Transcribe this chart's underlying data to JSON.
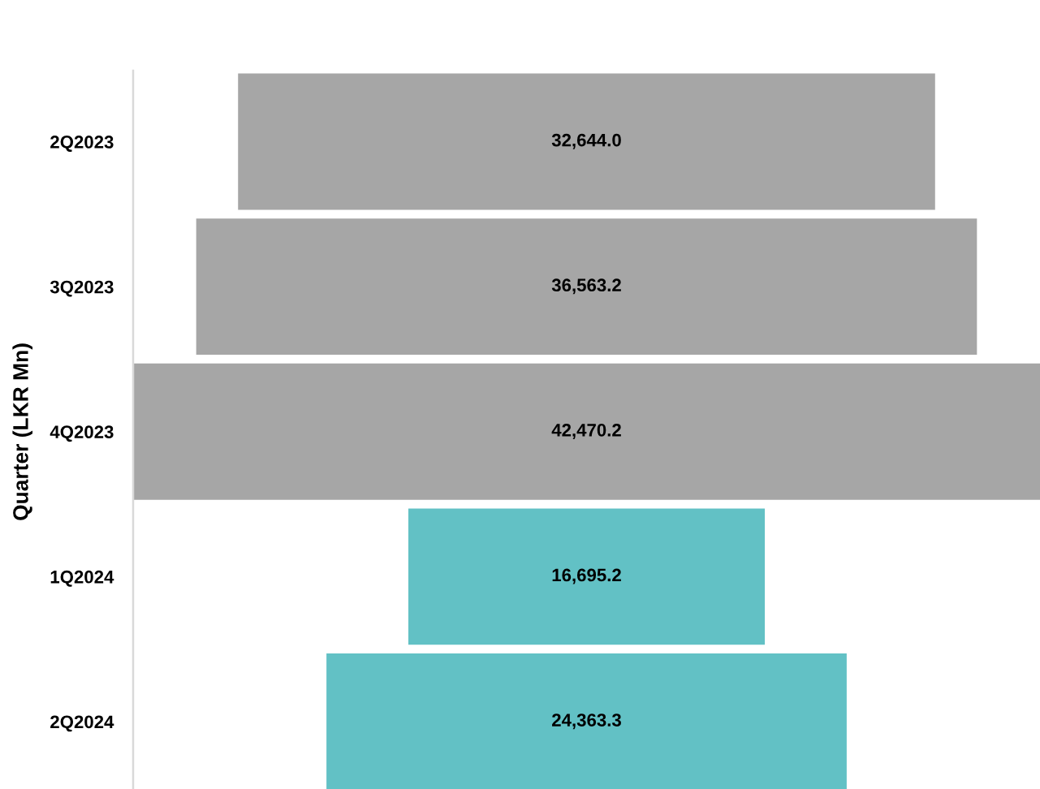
{
  "chart_data": {
    "type": "other",
    "ylabel": "Quarter (LKR Mn)",
    "categories": [
      "2Q2023",
      "3Q2023",
      "4Q2023",
      "1Q2024",
      "2Q2024"
    ],
    "values": [
      32644.0,
      36563.2,
      42470.2,
      16695.2,
      24363.3
    ],
    "value_labels": [
      "32,644.0",
      "36,563.2",
      "42,470.2",
      "16,695.2",
      "24,363.3"
    ],
    "colors": [
      "#a6a6a6",
      "#a6a6a6",
      "#a6a6a6",
      "#62c1c5",
      "#62c1c5"
    ]
  }
}
